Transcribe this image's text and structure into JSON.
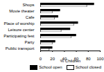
{
  "chart_data": {
    "type": "bar",
    "orientation": "horizontal",
    "categories": [
      "Shops",
      "Movie theater",
      "Cafe",
      "Place of worship",
      "Leisure center",
      "Participating fest",
      "Party",
      "Public transport"
    ],
    "series": [
      {
        "name": "School open",
        "color": "#000000",
        "values": [
          90,
          33,
          30,
          63,
          50,
          60,
          25,
          20
        ]
      },
      {
        "name": "School closed",
        "color": "#ffffff",
        "values": [
          78,
          20,
          24,
          56,
          35,
          52,
          20,
          15
        ]
      }
    ],
    "xlabel": "% Children",
    "xlim": [
      0,
      100
    ],
    "xticks": [
      0,
      20,
      40,
      60,
      80,
      100
    ],
    "legend": "bottom-right"
  }
}
